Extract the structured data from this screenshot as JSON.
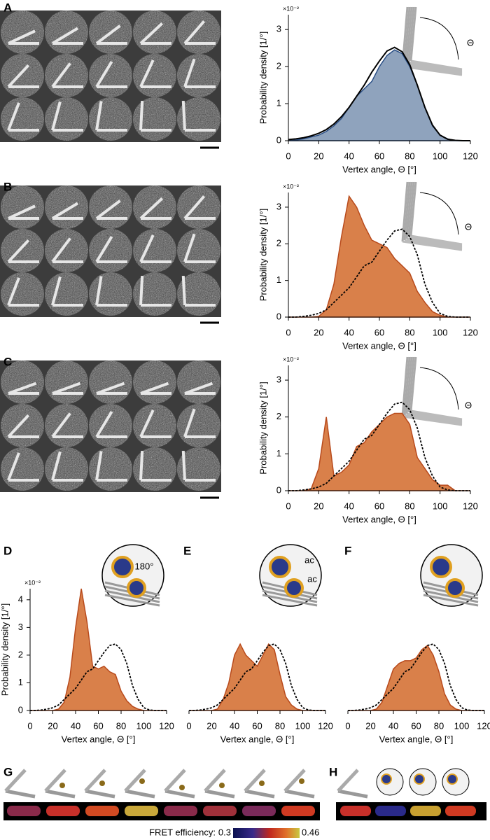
{
  "chart_data": [
    {
      "type": "histogram",
      "panel_label": "A",
      "ylabel": "Probability density [1/°]",
      "y_multiplier": "×10⁻²",
      "xlabel": "Vertex angle, Θ [°]",
      "annotations": [
        "Θ"
      ],
      "x": [
        0,
        5,
        10,
        15,
        20,
        25,
        30,
        35,
        40,
        45,
        50,
        55,
        60,
        65,
        70,
        75,
        80,
        85,
        90,
        95,
        100,
        105,
        110,
        115,
        120
      ],
      "series": [
        {
          "style": "area",
          "color": "#8fa3bd",
          "edge": "#2a4f86",
          "values": [
            0,
            0.02,
            0.05,
            0.1,
            0.15,
            0.25,
            0.4,
            0.6,
            0.9,
            1.2,
            1.4,
            1.6,
            2.0,
            2.3,
            2.45,
            2.35,
            2.0,
            1.5,
            0.9,
            0.4,
            0.15,
            0.05,
            0,
            0,
            0
          ]
        },
        {
          "style": "line",
          "color": "#000000",
          "values": [
            0.03,
            0.05,
            0.08,
            0.13,
            0.2,
            0.3,
            0.45,
            0.65,
            0.9,
            1.2,
            1.5,
            1.85,
            2.15,
            2.42,
            2.52,
            2.4,
            2.05,
            1.5,
            0.9,
            0.42,
            0.15,
            0.04,
            0.01,
            0,
            0
          ]
        }
      ],
      "xlim": [
        0,
        120
      ],
      "xticks": [
        0,
        20,
        40,
        60,
        80,
        100,
        120
      ],
      "ylim": [
        0,
        3.4
      ],
      "yticks": [
        0,
        1,
        2,
        3
      ]
    },
    {
      "type": "histogram",
      "panel_label": "B",
      "ylabel": "Probability density [1/°]",
      "y_multiplier": "×10⁻²",
      "xlabel": "Vertex angle, Θ [°]",
      "annotations": [
        "Θ"
      ],
      "x": [
        0,
        5,
        10,
        15,
        20,
        25,
        30,
        35,
        40,
        45,
        50,
        55,
        60,
        65,
        70,
        75,
        80,
        85,
        90,
        95,
        100,
        105,
        110,
        115,
        120
      ],
      "series": [
        {
          "style": "area",
          "color": "#d9804a",
          "edge": "#b84a1c",
          "values": [
            0,
            0,
            0,
            0,
            0.02,
            0.2,
            0.9,
            2.2,
            3.3,
            3.0,
            2.5,
            2.1,
            2.0,
            1.9,
            1.6,
            1.4,
            1.2,
            0.7,
            0.4,
            0.15,
            0.05,
            0,
            0,
            0,
            0
          ]
        },
        {
          "style": "dashed",
          "color": "#000000",
          "values": [
            0,
            0,
            0.02,
            0.05,
            0.1,
            0.2,
            0.4,
            0.6,
            0.8,
            1.1,
            1.4,
            1.5,
            1.8,
            2.1,
            2.35,
            2.4,
            2.2,
            1.7,
            0.9,
            0.4,
            0.1,
            0.02,
            0,
            0,
            0
          ]
        }
      ],
      "xlim": [
        0,
        120
      ],
      "xticks": [
        0,
        20,
        40,
        60,
        80,
        100,
        120
      ],
      "ylim": [
        0,
        3.4
      ],
      "yticks": [
        0,
        1,
        2,
        3
      ]
    },
    {
      "type": "histogram",
      "panel_label": "C",
      "ylabel": "Probability density [1/°]",
      "y_multiplier": "×10⁻²",
      "xlabel": "Vertex angle, Θ [°]",
      "annotations": [
        "Θ"
      ],
      "x": [
        0,
        5,
        10,
        15,
        20,
        25,
        30,
        35,
        40,
        45,
        50,
        55,
        60,
        65,
        70,
        75,
        80,
        85,
        90,
        95,
        100,
        105,
        110,
        115,
        120
      ],
      "series": [
        {
          "style": "area",
          "color": "#d9804a",
          "edge": "#b84a1c",
          "values": [
            0,
            0,
            0,
            0.05,
            0.6,
            2.0,
            0.4,
            0.5,
            0.7,
            1.2,
            1.3,
            1.6,
            1.8,
            2.0,
            2.1,
            2.1,
            1.8,
            0.9,
            0.6,
            0.3,
            0.15,
            0.15,
            0,
            0,
            0
          ]
        },
        {
          "style": "dashed",
          "color": "#000000",
          "values": [
            0,
            0,
            0.02,
            0.05,
            0.1,
            0.2,
            0.4,
            0.6,
            0.8,
            1.1,
            1.4,
            1.5,
            1.8,
            2.1,
            2.35,
            2.4,
            2.2,
            1.7,
            0.9,
            0.4,
            0.1,
            0.02,
            0,
            0,
            0
          ]
        }
      ],
      "xlim": [
        0,
        120
      ],
      "xticks": [
        0,
        20,
        40,
        60,
        80,
        100,
        120
      ],
      "ylim": [
        0,
        3.4
      ],
      "yticks": [
        0,
        1,
        2,
        3
      ]
    },
    {
      "type": "histogram",
      "panel_label": "D",
      "ylabel": "Probability density [1/°]",
      "y_multiplier": "×10⁻²",
      "xlabel": "Vertex angle, Θ [°]",
      "annotations": [
        "180°"
      ],
      "x": [
        0,
        5,
        10,
        15,
        20,
        25,
        30,
        35,
        40,
        45,
        50,
        55,
        60,
        65,
        70,
        75,
        80,
        85,
        90,
        95,
        100,
        105,
        110,
        115,
        120
      ],
      "series": [
        {
          "style": "area",
          "color": "#d9804a",
          "edge": "#b84a1c",
          "values": [
            0,
            0,
            0,
            0,
            0,
            0.05,
            0.3,
            1.2,
            3.0,
            4.4,
            3.2,
            1.6,
            1.5,
            1.6,
            1.4,
            1.3,
            0.7,
            0.35,
            0.15,
            0.05,
            0,
            0,
            0,
            0,
            0
          ]
        },
        {
          "style": "dashed",
          "color": "#000000",
          "values": [
            0,
            0,
            0.02,
            0.05,
            0.1,
            0.2,
            0.4,
            0.6,
            0.8,
            1.1,
            1.4,
            1.5,
            1.8,
            2.1,
            2.35,
            2.4,
            2.2,
            1.7,
            0.9,
            0.4,
            0.1,
            0.02,
            0,
            0,
            0
          ]
        }
      ],
      "xlim": [
        0,
        120
      ],
      "xticks": [
        0,
        20,
        40,
        60,
        80,
        100,
        120
      ],
      "ylim": [
        0,
        4.4
      ],
      "yticks": [
        0,
        1,
        2,
        3,
        4
      ]
    },
    {
      "type": "histogram",
      "panel_label": "E",
      "xlabel": "Vertex angle, Θ [°]",
      "annotations": [
        "ac",
        "ac"
      ],
      "x": [
        0,
        5,
        10,
        15,
        20,
        25,
        30,
        35,
        40,
        45,
        50,
        55,
        60,
        65,
        70,
        75,
        80,
        85,
        90,
        95,
        100,
        105,
        110,
        115,
        120
      ],
      "series": [
        {
          "style": "area",
          "color": "#d9804a",
          "edge": "#b84a1c",
          "values": [
            0,
            0,
            0,
            0,
            0,
            0.05,
            0.4,
            1.0,
            2.0,
            2.4,
            2.0,
            1.8,
            1.6,
            2.0,
            2.4,
            2.2,
            1.3,
            0.5,
            0.2,
            0.05,
            0,
            0,
            0,
            0,
            0
          ]
        },
        {
          "style": "dashed",
          "color": "#000000",
          "values": [
            0,
            0,
            0.02,
            0.05,
            0.1,
            0.2,
            0.4,
            0.6,
            0.8,
            1.1,
            1.4,
            1.5,
            1.8,
            2.1,
            2.35,
            2.4,
            2.2,
            1.7,
            0.9,
            0.4,
            0.1,
            0.02,
            0,
            0,
            0
          ]
        }
      ],
      "xlim": [
        0,
        120
      ],
      "xticks": [
        0,
        20,
        40,
        60,
        80,
        100,
        120
      ],
      "ylim": [
        0,
        4.4
      ]
    },
    {
      "type": "histogram",
      "panel_label": "F",
      "xlabel": "Vertex angle, Θ [°]",
      "annotations": [],
      "x": [
        0,
        5,
        10,
        15,
        20,
        25,
        30,
        35,
        40,
        45,
        50,
        55,
        60,
        65,
        70,
        75,
        80,
        85,
        90,
        95,
        100,
        105,
        110,
        115,
        120
      ],
      "series": [
        {
          "style": "area",
          "color": "#d9804a",
          "edge": "#b84a1c",
          "values": [
            0,
            0,
            0,
            0,
            0,
            0.05,
            0.3,
            0.9,
            1.5,
            1.7,
            1.8,
            1.8,
            1.9,
            2.2,
            2.35,
            2.0,
            1.4,
            0.6,
            0.2,
            0.05,
            0,
            0,
            0,
            0,
            0
          ]
        },
        {
          "style": "dashed",
          "color": "#000000",
          "values": [
            0,
            0,
            0.02,
            0.05,
            0.1,
            0.2,
            0.4,
            0.6,
            0.8,
            1.1,
            1.4,
            1.5,
            1.8,
            2.1,
            2.35,
            2.4,
            2.2,
            1.7,
            0.9,
            0.4,
            0.1,
            0.02,
            0,
            0,
            0
          ]
        }
      ],
      "xlim": [
        0,
        120
      ],
      "xticks": [
        0,
        20,
        40,
        60,
        80,
        100,
        120
      ],
      "ylim": [
        0,
        4.4
      ]
    }
  ],
  "fret": {
    "panel_labels": [
      "G",
      "H"
    ],
    "colorbar_label": "FRET efficiency:",
    "colorbar_ticks": [
      0.3,
      0.46
    ]
  }
}
